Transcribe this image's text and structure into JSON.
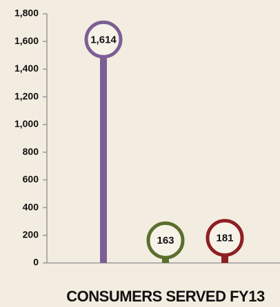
{
  "chart_data": {
    "type": "lollipop",
    "title": "CONSUMERS SERVED FY13",
    "categories": [
      null,
      null,
      null
    ],
    "values": [
      1614,
      163,
      181
    ],
    "value_labels": [
      "1,614",
      "163",
      "181"
    ],
    "colors": [
      "#7b5f94",
      "#5b6f2d",
      "#8e1f24"
    ],
    "ylim": [
      0,
      1800
    ],
    "yticks": [
      0,
      200,
      400,
      600,
      800,
      {
        "value": 1000,
        "label": "1,000"
      },
      {
        "value": 1200,
        "label": "1,200"
      },
      {
        "value": 1400,
        "label": "1,400"
      },
      {
        "value": 1600,
        "label": "1,600"
      },
      {
        "value": 1800,
        "label": "1,800"
      }
    ]
  }
}
